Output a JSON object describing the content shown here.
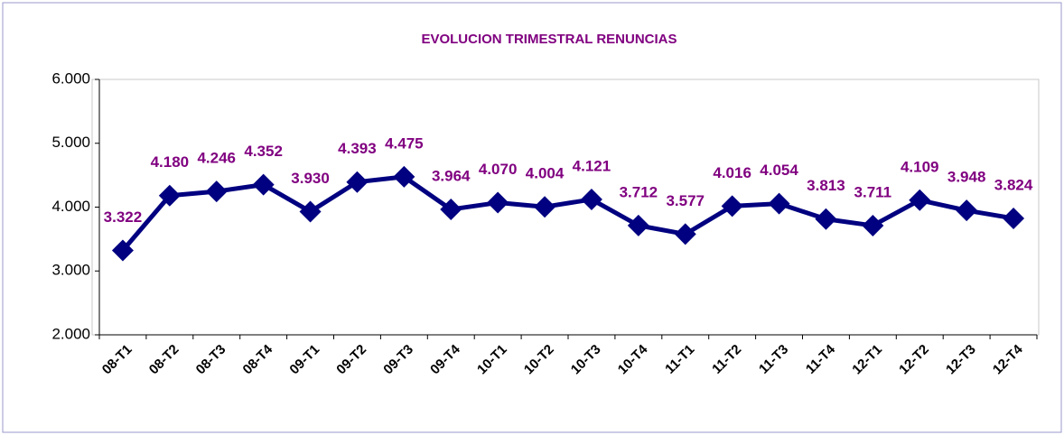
{
  "chart_data": {
    "type": "line",
    "title": "EVOLUCION TRIMESTRAL RENUNCIAS",
    "categories": [
      "08-T1",
      "08-T2",
      "08-T3",
      "08-T4",
      "09-T1",
      "09-T2",
      "09-T3",
      "09-T4",
      "10-T1",
      "10-T2",
      "10-T3",
      "10-T4",
      "11-T1",
      "11-T2",
      "11-T3",
      "11-T4",
      "12-T1",
      "12-T2",
      "12-T3",
      "12-T4"
    ],
    "series": [
      {
        "name": "Renuncias",
        "color": "#000080",
        "values": [
          3322,
          4180,
          4246,
          4352,
          3930,
          4393,
          4475,
          3964,
          4070,
          4004,
          4121,
          3712,
          3577,
          4016,
          4054,
          3813,
          3711,
          4109,
          3948,
          3824
        ],
        "value_labels": [
          "3.322",
          "4.180",
          "4.246",
          "4.352",
          "3.930",
          "4.393",
          "4.475",
          "3.964",
          "4.070",
          "4.004",
          "4.121",
          "3.712",
          "3.577",
          "4.016",
          "4.054",
          "3.813",
          "3.711",
          "4.109",
          "3.948",
          "3.824"
        ]
      }
    ],
    "ylim": [
      2000,
      6000
    ],
    "yticks": [
      {
        "value": 2000,
        "label": "2.000"
      },
      {
        "value": 3000,
        "label": "3.000"
      },
      {
        "value": 4000,
        "label": "4.000"
      },
      {
        "value": 5000,
        "label": "5.000"
      },
      {
        "value": 6000,
        "label": "6.000"
      }
    ],
    "grid": false
  }
}
